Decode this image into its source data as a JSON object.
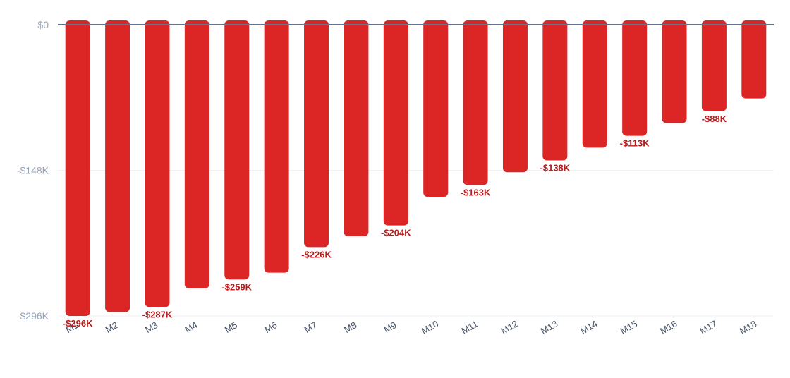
{
  "chart_data": {
    "type": "bar",
    "categories": [
      "M1",
      "M2",
      "M3",
      "M4",
      "M5",
      "M6",
      "M7",
      "M8",
      "M9",
      "M10",
      "M11",
      "M12",
      "M13",
      "M14",
      "M15",
      "M16",
      "M17",
      "M18"
    ],
    "values": [
      -296,
      -292,
      -287,
      -268,
      -259,
      -252,
      -226,
      -215,
      -204,
      -175,
      -163,
      -150,
      -138,
      -125,
      -113,
      -100,
      -88,
      -75
    ],
    "value_units": "$K",
    "data_labels": {
      "M1": "-$296K",
      "M3": "-$287K",
      "M5": "-$259K",
      "M7": "-$226K",
      "M9": "-$204K",
      "M11": "-$163K",
      "M13": "-$138K",
      "M15": "-$113K",
      "M17": "-$88K"
    },
    "y_ticks": [
      {
        "value": 0,
        "label": "$0"
      },
      {
        "value": -148,
        "label": "-$148K"
      },
      {
        "value": -296,
        "label": "-$296K"
      }
    ],
    "ylim": [
      -296,
      0
    ],
    "title": "",
    "xlabel": "",
    "ylabel": "",
    "grid": true,
    "legend": "none",
    "colors": {
      "bar": "#dc2626",
      "data_label": "#b91c1c",
      "axis_line": "#64748b",
      "gridline": "#eef1f5",
      "y_tick_text": "#94a3b8",
      "x_tick_text": "#475569"
    }
  }
}
